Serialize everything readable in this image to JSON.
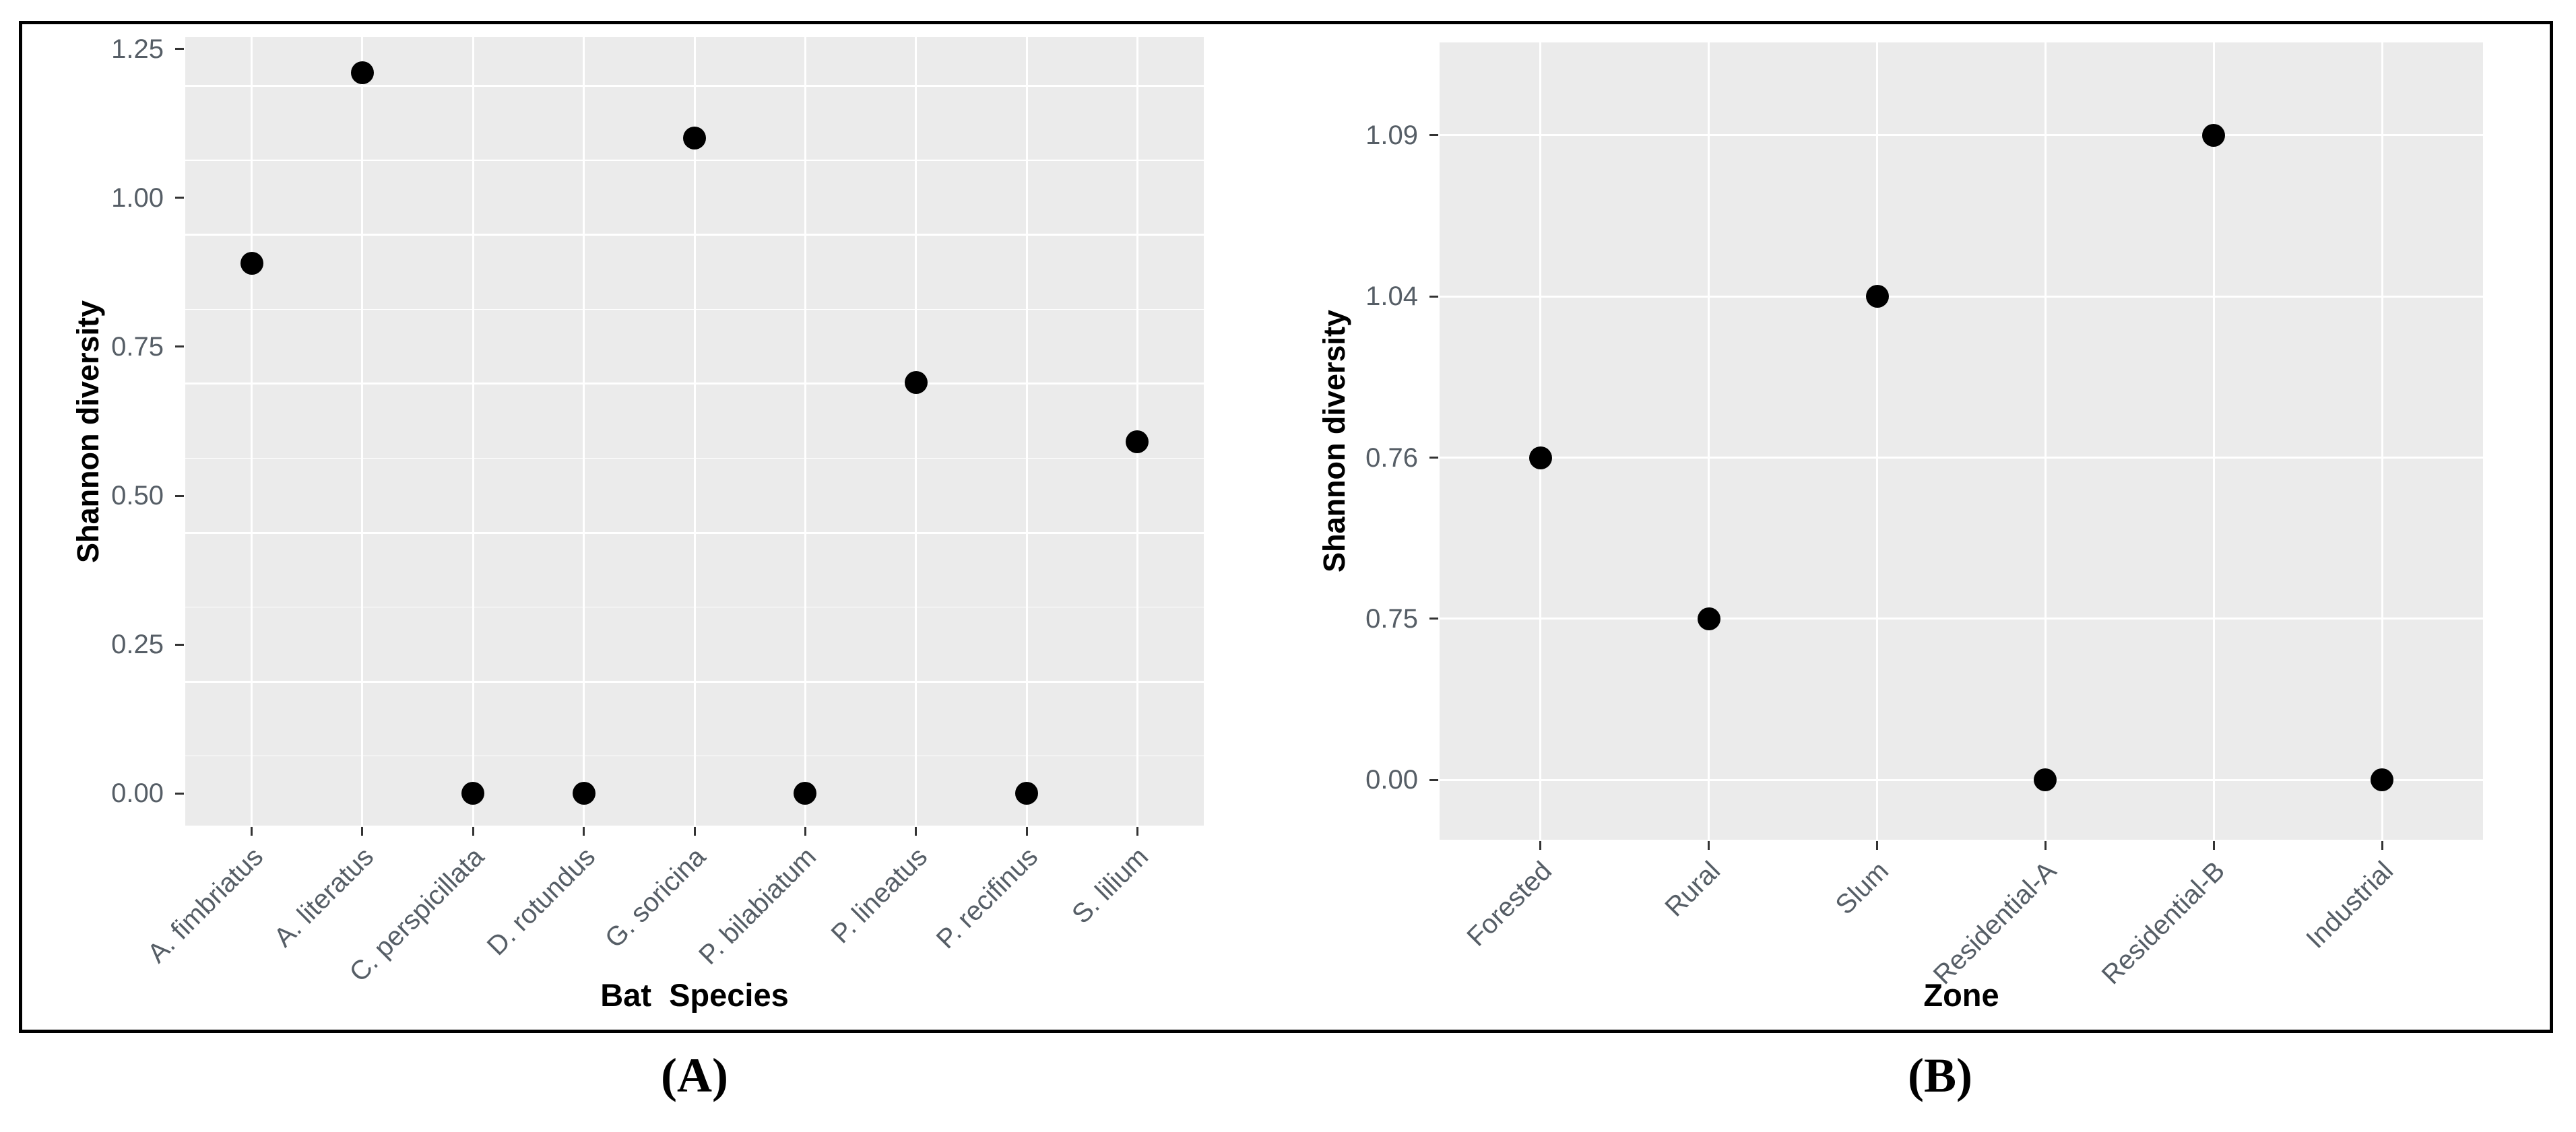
{
  "figure": {
    "captions": [
      {
        "id": "A",
        "text": "(A)"
      },
      {
        "id": "B",
        "text": "(B)"
      }
    ]
  },
  "chart_data": [
    {
      "panel": "A",
      "type": "scatter",
      "title": "",
      "xlabel": "Bat  Species",
      "ylabel": "Shannon diversity",
      "categories": [
        "A. fimbriatus",
        "A. literatus",
        "C. perspicillata",
        "D. rotundus",
        "G. soricina",
        "P. bilabiatum",
        "P. lineatus",
        "P. recifinus",
        "S. lilium"
      ],
      "values": [
        0.89,
        1.21,
        0.0,
        0.0,
        1.1,
        0.0,
        0.69,
        0.0,
        0.59
      ],
      "y_axis": {
        "type": "linear",
        "ticks": [
          0.0,
          0.25,
          0.5,
          0.75,
          1.0,
          1.25
        ],
        "minor_ticks": [
          0.125,
          0.375,
          0.625,
          0.875,
          1.125
        ],
        "range": [
          -0.054,
          1.27
        ],
        "tick_decimals": 2
      },
      "x_tick_angle": 45,
      "grid": true,
      "legend": "none",
      "colors": {
        "panel_bg": "#ebebeb",
        "grid": "#ffffff",
        "point": "#000000",
        "tick_text": "#565e66",
        "axis_title": "#000000"
      }
    },
    {
      "panel": "B",
      "type": "scatter",
      "title": "",
      "xlabel": "Zone",
      "ylabel": "Shannon diversity",
      "categories": [
        "Forested",
        "Rural",
        "Slum",
        "Residential-A",
        "Residential-B",
        "Industrial"
      ],
      "values": [
        0.76,
        0.75,
        1.04,
        0.0,
        1.09,
        0.0
      ],
      "y_axis": {
        "type": "discrete",
        "ticks": [
          "0.00",
          "0.75",
          "0.76",
          "1.04",
          "1.09"
        ]
      },
      "x_tick_angle": 45,
      "grid": true,
      "legend": "none",
      "colors": {
        "panel_bg": "#ebebeb",
        "grid": "#ffffff",
        "point": "#000000",
        "tick_text": "#565e66",
        "axis_title": "#000000"
      }
    }
  ]
}
